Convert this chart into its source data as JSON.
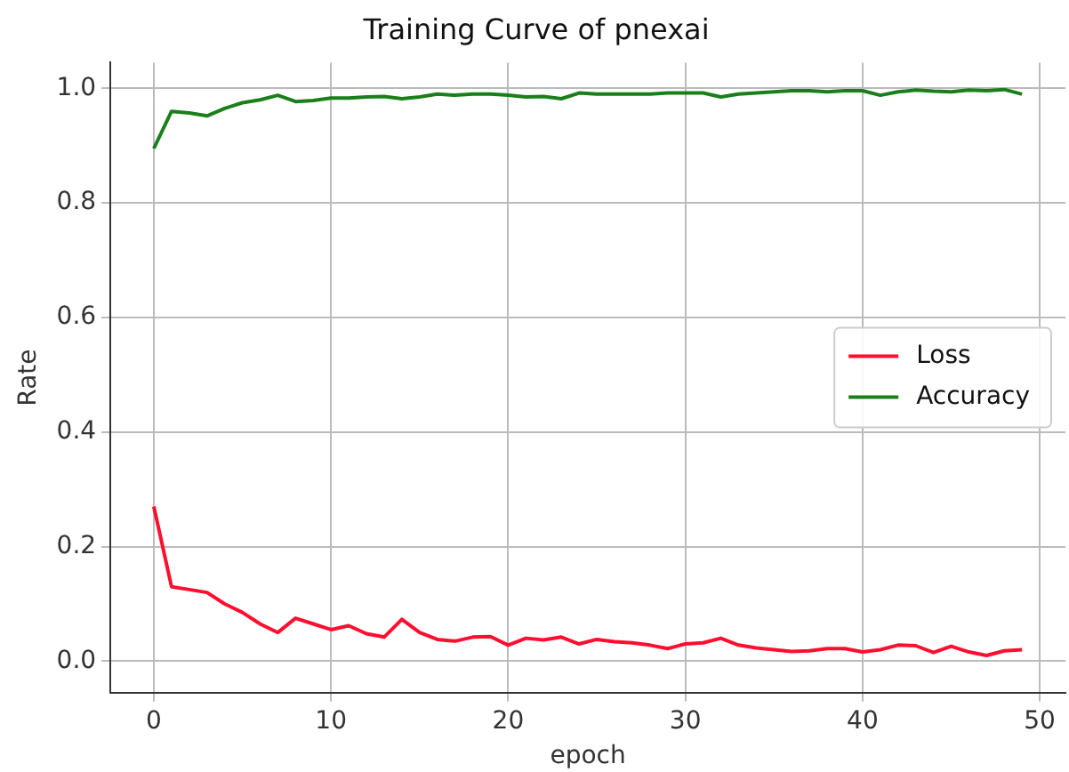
{
  "chart_data": {
    "type": "line",
    "title": "Training Curve of pnexai",
    "xlabel": "epoch",
    "ylabel": "Rate",
    "x": [
      0,
      1,
      2,
      3,
      4,
      5,
      6,
      7,
      8,
      9,
      10,
      11,
      12,
      13,
      14,
      15,
      16,
      17,
      18,
      19,
      20,
      21,
      22,
      23,
      24,
      25,
      26,
      27,
      28,
      29,
      30,
      31,
      32,
      33,
      34,
      35,
      36,
      37,
      38,
      39,
      40,
      41,
      42,
      43,
      44,
      45,
      46,
      47,
      48,
      49
    ],
    "series": [
      {
        "name": "Loss",
        "color": "#ff0f2f",
        "values": [
          0.27,
          0.13,
          0.125,
          0.12,
          0.1,
          0.085,
          0.065,
          0.05,
          0.075,
          0.065,
          0.055,
          0.062,
          0.048,
          0.042,
          0.073,
          0.05,
          0.038,
          0.035,
          0.042,
          0.043,
          0.028,
          0.04,
          0.037,
          0.042,
          0.03,
          0.038,
          0.034,
          0.032,
          0.028,
          0.022,
          0.03,
          0.032,
          0.04,
          0.028,
          0.023,
          0.02,
          0.017,
          0.018,
          0.022,
          0.022,
          0.016,
          0.02,
          0.028,
          0.027,
          0.015,
          0.026,
          0.016,
          0.01,
          0.018,
          0.02
        ]
      },
      {
        "name": "Accuracy",
        "color": "#1a7f1a",
        "values": [
          0.895,
          0.96,
          0.957,
          0.952,
          0.965,
          0.975,
          0.98,
          0.988,
          0.977,
          0.979,
          0.983,
          0.983,
          0.985,
          0.986,
          0.982,
          0.985,
          0.99,
          0.988,
          0.99,
          0.99,
          0.988,
          0.985,
          0.986,
          0.982,
          0.992,
          0.99,
          0.99,
          0.99,
          0.99,
          0.992,
          0.992,
          0.992,
          0.985,
          0.99,
          0.992,
          0.994,
          0.996,
          0.996,
          0.994,
          0.996,
          0.996,
          0.988,
          0.994,
          0.997,
          0.995,
          0.994,
          0.997,
          0.996,
          0.998,
          0.99
        ]
      }
    ],
    "xlim": [
      -2.45,
      51.45
    ],
    "xticks": [
      0,
      10,
      20,
      30,
      40,
      50
    ],
    "ylim": [
      -0.055,
      1.045
    ],
    "yticks": [
      {
        "value": 0,
        "label": "0.0"
      },
      {
        "value": 0.2,
        "label": "0.2"
      },
      {
        "value": 0.4,
        "label": "0.4"
      },
      {
        "value": 0.6,
        "label": "0.6"
      },
      {
        "value": 0.8,
        "label": "0.8"
      },
      {
        "value": 1,
        "label": "1.0"
      }
    ],
    "grid": true,
    "legend": "right",
    "marker": "none",
    "line_style": "solid"
  }
}
